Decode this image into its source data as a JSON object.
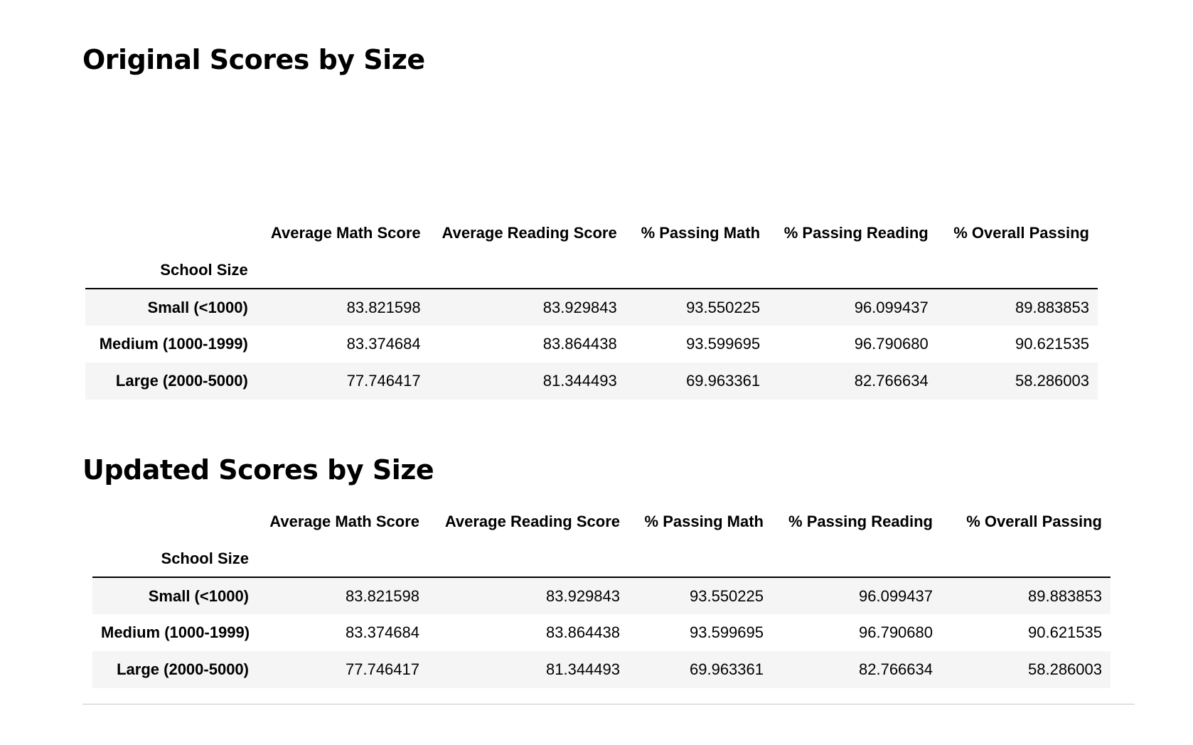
{
  "sections": [
    {
      "heading": "Original Scores by Size",
      "index_name": "School Size",
      "columns": [
        "Average Math Score",
        "Average Reading Score",
        "% Passing Math",
        "% Passing Reading",
        "% Overall Passing"
      ],
      "rows": [
        {
          "label": "Small (<1000)",
          "values": [
            "83.821598",
            "83.929843",
            "93.550225",
            "96.099437",
            "89.883853"
          ]
        },
        {
          "label": "Medium (1000-1999)",
          "values": [
            "83.374684",
            "83.864438",
            "93.599695",
            "96.790680",
            "90.621535"
          ]
        },
        {
          "label": "Large (2000-5000)",
          "values": [
            "77.746417",
            "81.344493",
            "69.963361",
            "82.766634",
            "58.286003"
          ]
        }
      ]
    },
    {
      "heading": "Updated Scores by Size",
      "index_name": "School Size",
      "columns": [
        "Average Math Score",
        "Average Reading Score",
        "% Passing Math",
        "% Passing Reading",
        "% Overall Passing"
      ],
      "rows": [
        {
          "label": "Small (<1000)",
          "values": [
            "83.821598",
            "83.929843",
            "93.550225",
            "96.099437",
            "89.883853"
          ]
        },
        {
          "label": "Medium (1000-1999)",
          "values": [
            "83.374684",
            "83.864438",
            "93.599695",
            "96.790680",
            "90.621535"
          ]
        },
        {
          "label": "Large (2000-5000)",
          "values": [
            "77.746417",
            "81.344493",
            "69.963361",
            "82.766634",
            "58.286003"
          ]
        }
      ]
    }
  ]
}
